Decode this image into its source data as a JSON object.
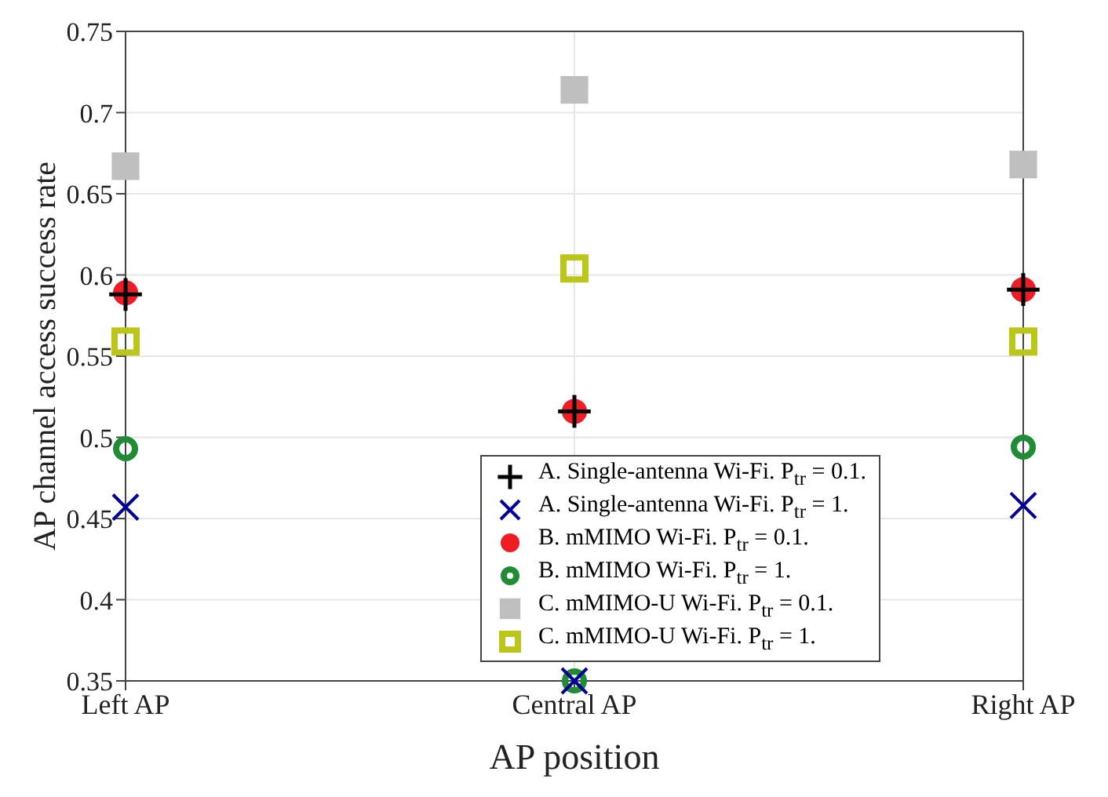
{
  "chart_data": {
    "type": "scatter",
    "xlabel": "AP position",
    "ylabel": "AP channel access success rate",
    "categories": [
      "Left AP",
      "Central AP",
      "Right AP"
    ],
    "ylim": [
      0.35,
      0.75
    ],
    "yticks": [
      0.35,
      0.4,
      0.45,
      0.5,
      0.55,
      0.6,
      0.65,
      0.7,
      0.75
    ],
    "grid": true,
    "legend": "bottom right",
    "series": [
      {
        "name": "A. Single-antenna Wi-Fi. P$_{tr}$ = 0.1.",
        "color": "#000000",
        "marker": "cross",
        "values": [
          0.588,
          0.516,
          0.591
        ]
      },
      {
        "name": "A. Single-antenna Wi-Fi. P$_{tr}$ = 1.",
        "color": "#000099",
        "marker": "cross",
        "values": [
          0.457,
          0.35,
          0.458
        ]
      },
      {
        "name": "B. mMIMO Wi-Fi. P$_{tr}$ = 0.1.",
        "color": "#ee1c25",
        "marker": "circle",
        "values": [
          0.589,
          0.516,
          0.591
        ]
      },
      {
        "name": "B. mMIMO Wi-Fi. P$_{tr}$ = 1.",
        "color": "#218b35",
        "marker": "circle",
        "values": [
          0.493,
          0.35,
          0.494
        ]
      },
      {
        "name": "C. mMIMO-U Wi-Fi. P$_{tr}$ = 0.1.",
        "color": "#bfbfbf",
        "marker": "square",
        "values": [
          0.667,
          0.714,
          0.668
        ]
      },
      {
        "name": "C. mMIMO-U Wi-Fi. P$_{tr}$ = 1.",
        "color": "#bcc51a",
        "marker": "square",
        "values": [
          0.559,
          0.604,
          0.559
        ]
      }
    ]
  }
}
